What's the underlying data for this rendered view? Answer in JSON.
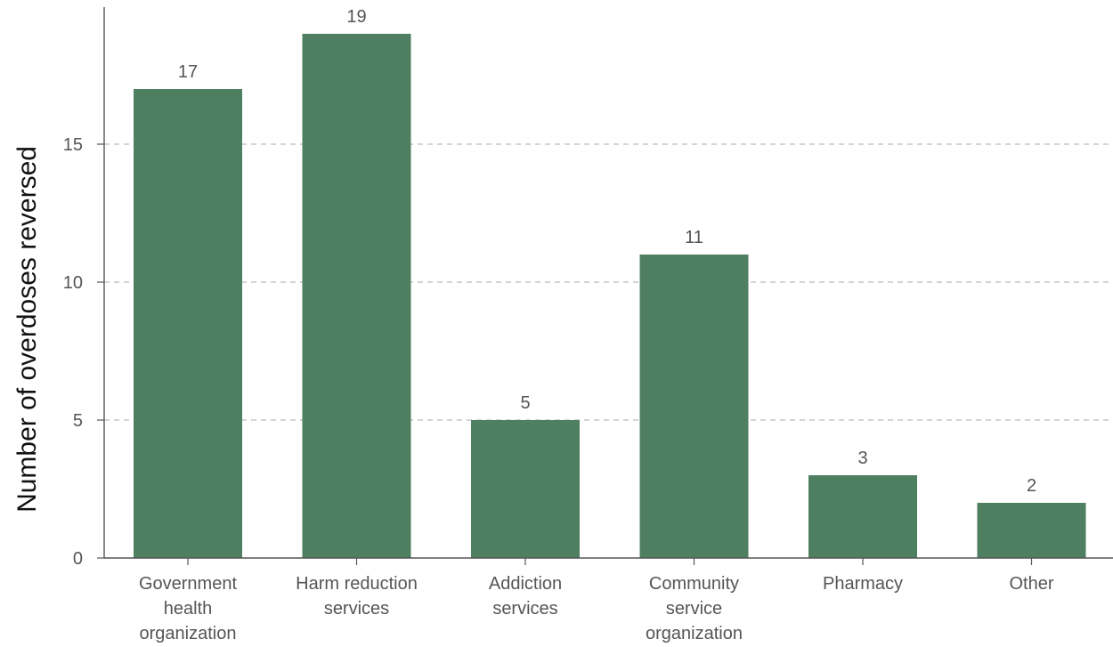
{
  "colors": {
    "bar": "#4f7f61",
    "grid": "#bbbbbb",
    "axis": "#555555"
  },
  "chart_data": {
    "type": "bar",
    "title": "",
    "xlabel": "",
    "ylabel": "Number of overdoses reversed",
    "categories": [
      [
        "Government",
        "health",
        "organization"
      ],
      [
        "Harm reduction",
        "services"
      ],
      [
        "Addiction",
        "services"
      ],
      [
        "Community",
        "service",
        "organization"
      ],
      [
        "Pharmacy"
      ],
      [
        "Other"
      ]
    ],
    "values": [
      17,
      19,
      5,
      11,
      3,
      2
    ],
    "ylim": [
      0,
      20
    ],
    "yticks": [
      0,
      5,
      10,
      15
    ],
    "grid": true,
    "data_labels": true
  }
}
